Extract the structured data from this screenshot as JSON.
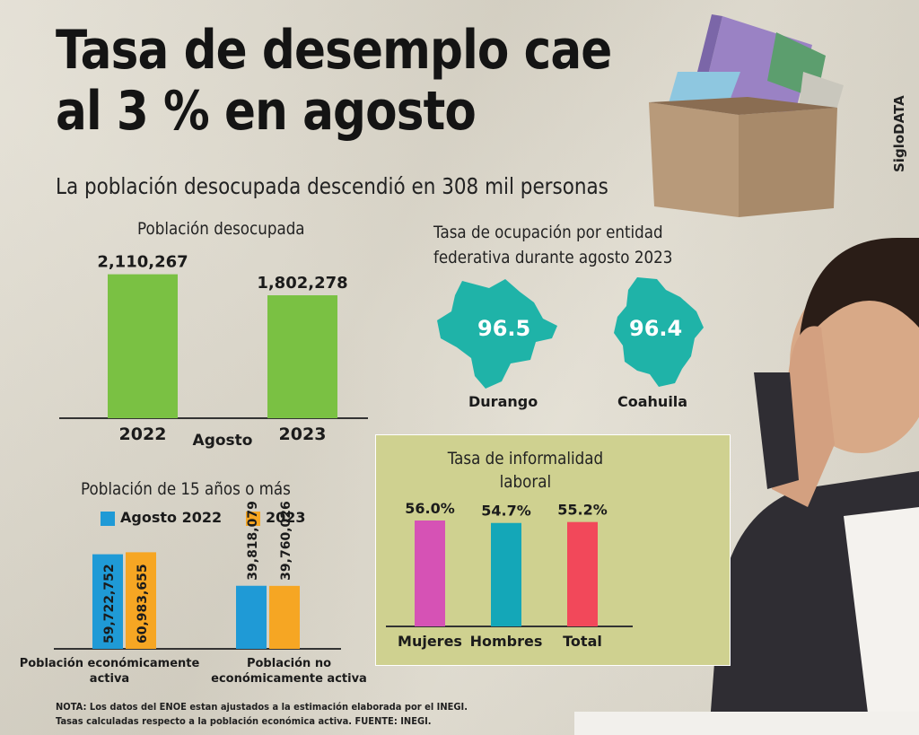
{
  "brand": "SigloDATA",
  "header": {
    "title_line1": "Tasa de desemplo cae",
    "title_line2": "al 3 % en agosto",
    "subtitle": "La población desocupada descendió en 308 mil personas"
  },
  "colors": {
    "green": "#7ac143",
    "teal": "#1fb3a8",
    "blue": "#1f9ad6",
    "orange": "#f6a623",
    "magenta": "#d652b5",
    "cyan": "#14a7b8",
    "red": "#f2485a",
    "panel": "#cfd190"
  },
  "decor": {
    "box_icon": "cardboard-box-icon",
    "person_icon": "stressed-person-photo-icon"
  },
  "chart_data": [
    {
      "id": "desocupada",
      "type": "bar",
      "title": "Población desocupada",
      "xlabel": "Agosto",
      "categories": [
        "2022",
        "2023"
      ],
      "values": [
        2110267,
        1802278
      ],
      "value_labels": [
        "2,110,267",
        "1,802,278"
      ],
      "ylim": [
        0,
        2500000
      ]
    },
    {
      "id": "ocupacion",
      "type": "table",
      "title_line1": "Tasa de ocupación por entidad",
      "title_line2": "federativa durante agosto 2023",
      "states": [
        {
          "name": "Durango",
          "value": 96.5,
          "label": "96.5"
        },
        {
          "name": "Coahuila",
          "value": 96.4,
          "label": "96.4"
        }
      ]
    },
    {
      "id": "poblacion15",
      "type": "bar",
      "title": "Población de 15 años o más",
      "legend": [
        "Agosto 2022",
        "2023"
      ],
      "categories": [
        {
          "line1": "Población económicamente",
          "line2": "activa"
        },
        {
          "line1": "Población no",
          "line2": "económicamente activa"
        }
      ],
      "series": [
        {
          "name": "Agosto 2022",
          "values": [
            59722752,
            39818079
          ],
          "labels": [
            "59,722,752",
            "39,818,079"
          ]
        },
        {
          "name": "2023",
          "values": [
            60983655,
            39760026
          ],
          "labels": [
            "60,983,655",
            "39,760,026"
          ]
        }
      ],
      "ylim": [
        0,
        68000000
      ]
    },
    {
      "id": "informalidad",
      "type": "bar",
      "title_line1": "Tasa de informalidad",
      "title_line2": "laboral",
      "categories": [
        "Mujeres",
        "Hombres",
        "Total"
      ],
      "values": [
        56.0,
        54.7,
        55.2
      ],
      "value_labels": [
        "56.0%",
        "54.7%",
        "55.2%"
      ]
    }
  ],
  "note": {
    "line1": "NOTA: Los datos del ENOE estan ajustados a la estimación elaborada por el INEGI.",
    "line2": "Tasas calculadas respecto a la población económica activa. FUENTE: INEGI."
  }
}
